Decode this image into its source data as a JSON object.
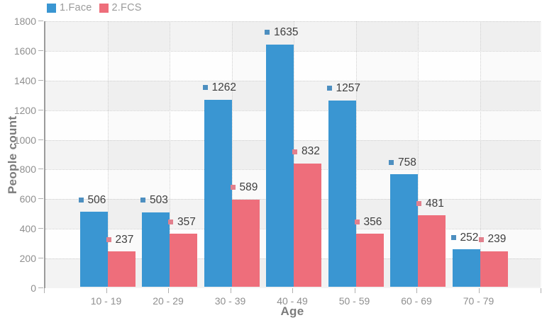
{
  "chart_data": {
    "type": "bar",
    "title": "",
    "categories": [
      "10 - 19",
      "20 - 29",
      "30 - 39",
      "40 - 49",
      "50 - 59",
      "60 - 69",
      "70 - 79"
    ],
    "series": [
      {
        "name": "1.Face",
        "color": "#3a96d2",
        "marker_color": "#4d8fc0",
        "values": [
          506,
          503,
          1262,
          1635,
          1257,
          758,
          252
        ]
      },
      {
        "name": "2.FCS",
        "color": "#ee6e7b",
        "marker_color": "#e2808d",
        "values": [
          237,
          357,
          589,
          832,
          356,
          481,
          239
        ]
      }
    ],
    "xlabel": "Age",
    "ylabel": "People count",
    "ylim": [
      0,
      1800
    ],
    "ytick_step": 200,
    "y_tick_labels": [
      "0",
      "200",
      "400",
      "600",
      "800",
      "1000",
      "1200",
      "1400",
      "1600",
      "1800"
    ],
    "grid": "dotted",
    "legend_position": "top-left",
    "data_labels": true,
    "colors": {
      "grid_line": "#cfcfcf",
      "axis_line": "#9b9b9b",
      "band_gray": "#f3f3f3",
      "band_white": "#fefefe",
      "tick": "#b0b0b0",
      "axis_text": "#8f8f8f",
      "legend_text": "#9b9b9b",
      "label_text": "#3e3e3e",
      "title_text": "#7c7c7c"
    }
  }
}
